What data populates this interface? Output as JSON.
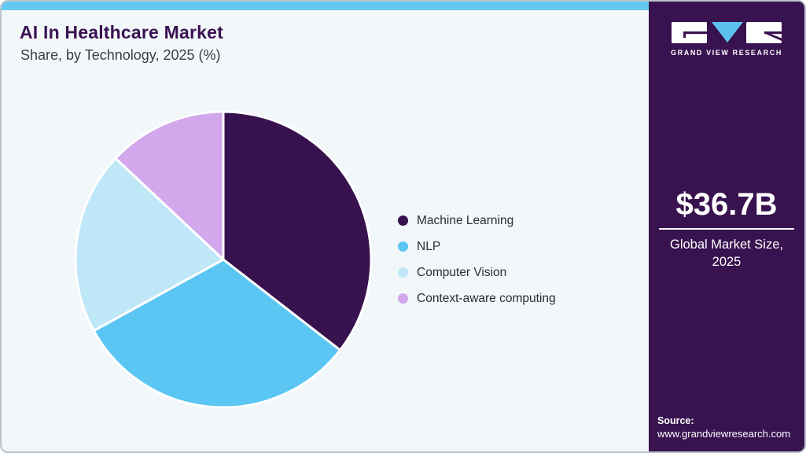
{
  "header": {
    "title": "AI In Healthcare Market",
    "subtitle": "Share, by Technology, 2025 (%)"
  },
  "chart_data": {
    "type": "pie",
    "title": "AI In Healthcare Market Share, by Technology, 2025 (%)",
    "categories": [
      "Machine Learning",
      "NLP",
      "Computer Vision",
      "Context-aware computing"
    ],
    "values": [
      35.5,
      31.5,
      20,
      13
    ],
    "colors": [
      "#38124e",
      "#5bc6f3",
      "#c0e7f8",
      "#d2a7eb"
    ],
    "start_angle_deg": 0,
    "direction": "clockwise",
    "legend_position": "right",
    "slice_border_color": "#ffffff"
  },
  "sidebar": {
    "logo_text": "GRAND VIEW RESEARCH",
    "market_size": "$36.7B",
    "market_label": "Global Market Size, 2025",
    "source_label": "Source:",
    "source_url": "www.grandviewresearch.com",
    "background_color": "#38134f",
    "accent_color": "#64c9f2"
  }
}
